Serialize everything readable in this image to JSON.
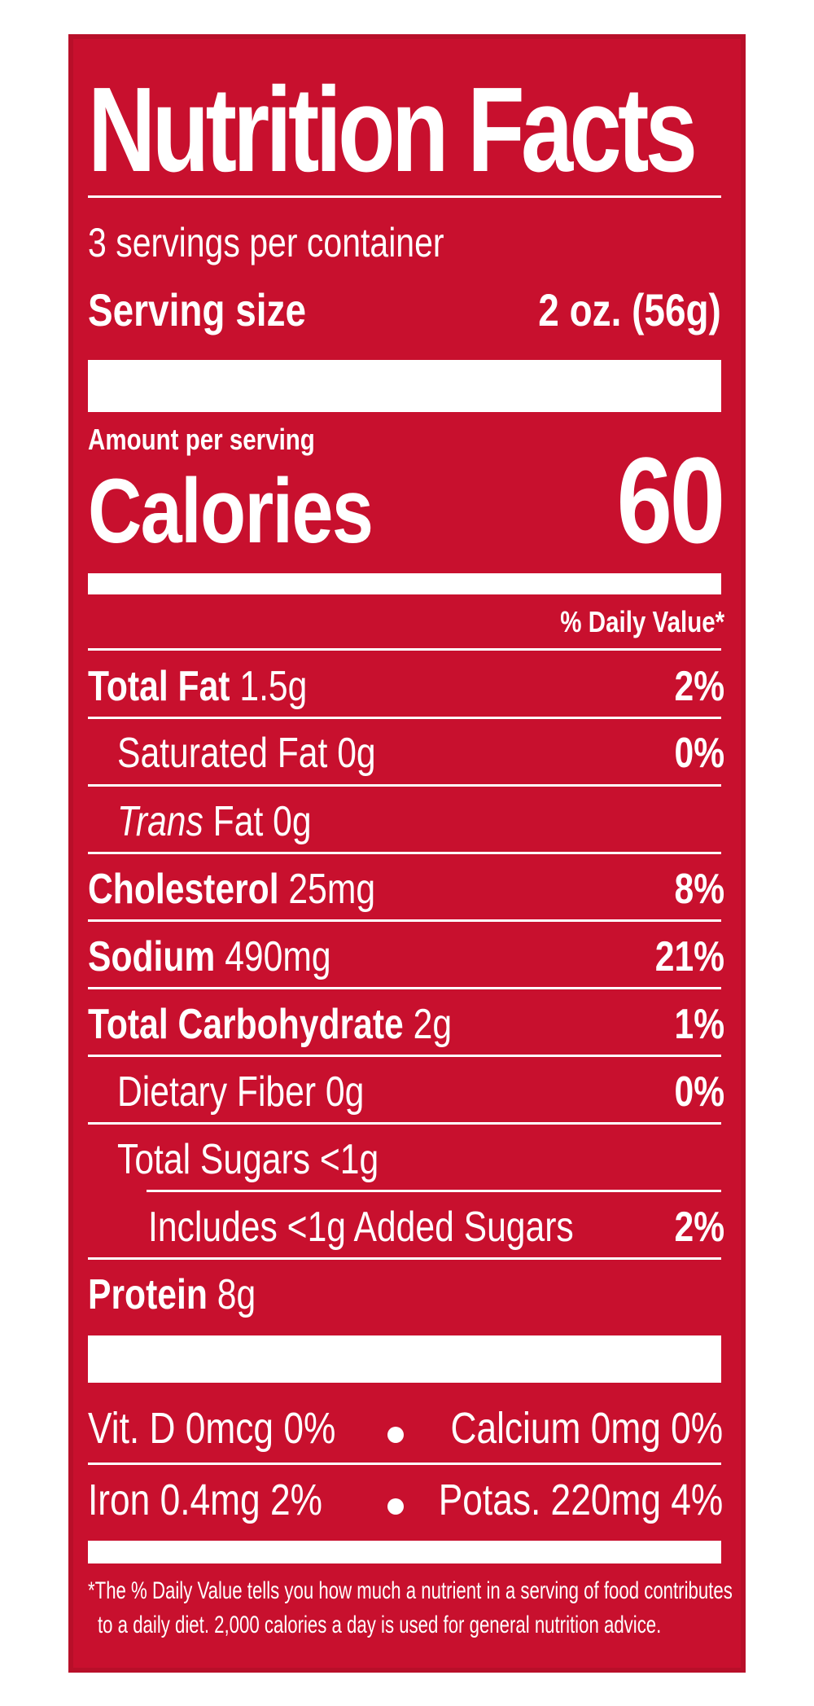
{
  "label": {
    "title": "Nutrition Facts",
    "servings_per_container": "3 servings per container",
    "serving_size_label": "Serving size",
    "serving_size_value": "2 oz. (56g)",
    "amount_per_serving": "Amount per serving",
    "calories_label": "Calories",
    "calories_value": "60",
    "daily_value_header": "% Daily Value*"
  },
  "nutrients": [
    {
      "name": "Total Fat",
      "amount": "1.5g",
      "dv": "2%"
    },
    {
      "name": "Saturated Fat",
      "amount": "0g",
      "dv": "0%"
    },
    {
      "name": "Trans",
      "name_rest": "Fat",
      "amount": "0g",
      "dv": ""
    },
    {
      "name": "Cholesterol",
      "amount": "25mg",
      "dv": "8%"
    },
    {
      "name": "Sodium",
      "amount": "490mg",
      "dv": "21%"
    },
    {
      "name": "Total Carbohydrate",
      "amount": "2g",
      "dv": "1%"
    },
    {
      "name": "Dietary Fiber",
      "amount": "0g",
      "dv": "0%"
    },
    {
      "name": "Total Sugars",
      "amount": "<1g",
      "dv": ""
    },
    {
      "name": "Includes <1g Added Sugars",
      "amount": "",
      "dv": "2%"
    },
    {
      "name": "Protein",
      "amount": "8g",
      "dv": ""
    }
  ],
  "micronutrients": {
    "vit_d": "Vit. D 0mcg 0%",
    "calcium": "Calcium 0mg 0%",
    "iron": "Iron 0.4mg 2%",
    "potassium": "Potas. 220mg 4%"
  },
  "footnote": {
    "line1": "*The % Daily Value tells you how much a nutrient in a serving of food contributes",
    "line2": "to a daily diet. 2,000 calories a day is used for general nutrition advice."
  },
  "colors": {
    "background": "#c8102e",
    "text": "#ffffff"
  }
}
